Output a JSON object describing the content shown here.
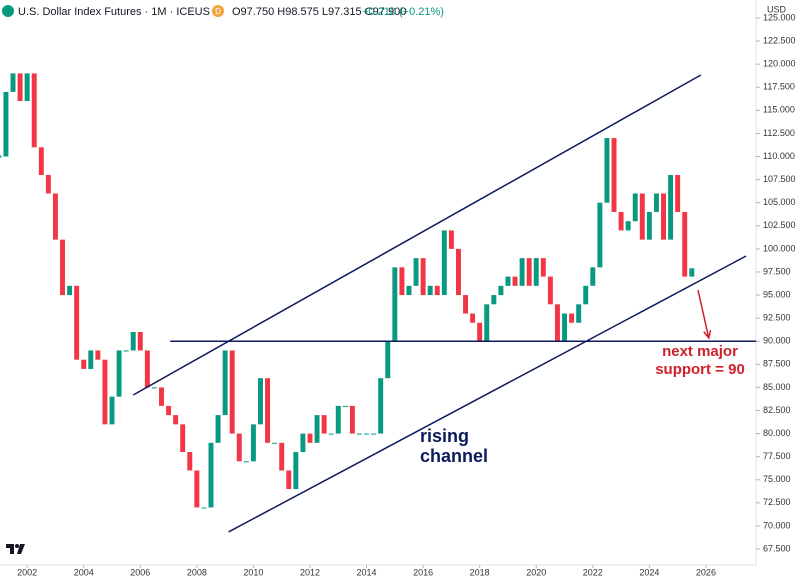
{
  "header": {
    "symbol": "U.S. Dollar Index Futures · 1M · ICEUS",
    "badge": "D",
    "ohlc": "O97.750 H98.575 L97.315 C97.900",
    "change": "+0.210 (+0.21%)",
    "currency": "USD"
  },
  "chart_data": {
    "type": "candlestick",
    "x": [
      2001,
      2001.25,
      2001.5,
      2001.75,
      2002,
      2002.25,
      2002.5,
      2002.75,
      2003,
      2003.25,
      2003.5,
      2003.75,
      2004,
      2004.25,
      2004.5,
      2004.75,
      2005,
      2005.25,
      2005.5,
      2005.75,
      2006,
      2006.25,
      2006.5,
      2006.75,
      2007,
      2007.25,
      2007.5,
      2007.75,
      2008,
      2008.25,
      2008.5,
      2008.75,
      2009,
      2009.25,
      2009.5,
      2009.75,
      2010,
      2010.25,
      2010.5,
      2010.75,
      2011,
      2011.25,
      2011.5,
      2011.75,
      2012,
      2012.25,
      2012.5,
      2012.75,
      2013,
      2013.25,
      2013.5,
      2013.75,
      2014,
      2014.25,
      2014.5,
      2014.75,
      2015,
      2015.25,
      2015.5,
      2015.75,
      2016,
      2016.25,
      2016.5,
      2016.75,
      2017,
      2017.25,
      2017.5,
      2017.75,
      2018,
      2018.25,
      2018.5,
      2018.75,
      2019,
      2019.25,
      2019.5,
      2019.75,
      2020,
      2020.25,
      2020.5,
      2020.75,
      2021,
      2021.25,
      2021.5,
      2021.75,
      2022,
      2022.25,
      2022.5,
      2022.75,
      2023,
      2023.25,
      2023.5,
      2023.75,
      2024,
      2024.25,
      2024.5,
      2024.75,
      2025,
      2025.25,
      2025.5
    ],
    "series": [
      {
        "up_color": "#089981",
        "down_color": "#f23645",
        "values": [
          110,
          117,
          119,
          116,
          119,
          111,
          108,
          106,
          101,
          95,
          96,
          88,
          87,
          89,
          88,
          81,
          84,
          89,
          89,
          91,
          89,
          85,
          85,
          83,
          82,
          81,
          78,
          76,
          72,
          72,
          79,
          82,
          89,
          80,
          77,
          77,
          81,
          86,
          79,
          79,
          76,
          74,
          78,
          80,
          79,
          82,
          80,
          80,
          83,
          83,
          80,
          80,
          80,
          80,
          86,
          90,
          98,
          95,
          96,
          99,
          95,
          96,
          95,
          102,
          100,
          95,
          93,
          92,
          90,
          94,
          95,
          96,
          97,
          96,
          99,
          96,
          99,
          97,
          94,
          90,
          93,
          92,
          94,
          96,
          98,
          105,
          112,
          104,
          102,
          103,
          106,
          101,
          104,
          106,
          101,
          108,
          104,
          97,
          97.9
        ]
      }
    ],
    "xlim": [
      2001.04,
      2027.77
    ],
    "xticks": [
      2002,
      2004,
      2006,
      2008,
      2010,
      2012,
      2014,
      2016,
      2018,
      2020,
      2022,
      2024,
      2026
    ],
    "ylim": [
      65.77,
      126.95
    ],
    "yticks": [
      {
        "value": 67.5,
        "label": "67.500"
      },
      {
        "value": 70,
        "label": "70.000"
      },
      {
        "value": 72.5,
        "label": "72.500"
      },
      {
        "value": 75,
        "label": "75.000"
      },
      {
        "value": 77.5,
        "label": "77.500"
      },
      {
        "value": 80,
        "label": "80.000"
      },
      {
        "value": 82.5,
        "label": "82.500"
      },
      {
        "value": 85,
        "label": "85.000"
      },
      {
        "value": 87.5,
        "label": "87.500"
      },
      {
        "value": 90,
        "label": "90.000"
      },
      {
        "value": 92.5,
        "label": "92.500"
      },
      {
        "value": 95,
        "label": "95.000"
      },
      {
        "value": 97.5,
        "label": "97.500"
      },
      {
        "value": 100,
        "label": "100.000"
      },
      {
        "value": 102.5,
        "label": "102.500"
      },
      {
        "value": 105,
        "label": "105.000"
      },
      {
        "value": 107.5,
        "label": "107.500"
      },
      {
        "value": 110,
        "label": "110.000"
      },
      {
        "value": 112.5,
        "label": "112.500"
      },
      {
        "value": 115,
        "label": "115.000"
      },
      {
        "value": 117.5,
        "label": "117.500"
      },
      {
        "value": 120,
        "label": "120.000"
      },
      {
        "value": 122.5,
        "label": "122.500"
      },
      {
        "value": 125,
        "label": "125.000"
      }
    ],
    "trendlines": [
      {
        "color": "#0d1b5e",
        "x": [
          2005.75,
          2025.82
        ],
        "y": [
          84.18,
          118.83
        ]
      },
      {
        "color": "#0d1b5e",
        "x": [
          2009.12,
          2027.42
        ],
        "y": [
          69.35,
          99.23
        ]
      },
      {
        "color": "#0d1b5e",
        "x": [
          2007.06,
          2027.77
        ],
        "y": [
          90,
          90
        ]
      },
      {
        "color": "#d0202a",
        "x": [
          2025.72,
          2026.1
        ],
        "y": [
          95.55,
          90.35
        ]
      }
    ],
    "annotations": [
      {
        "text": "rising channel",
        "color": "#0d1b5e"
      },
      {
        "text": "next major support = 90",
        "color": "#d0202a"
      }
    ]
  }
}
